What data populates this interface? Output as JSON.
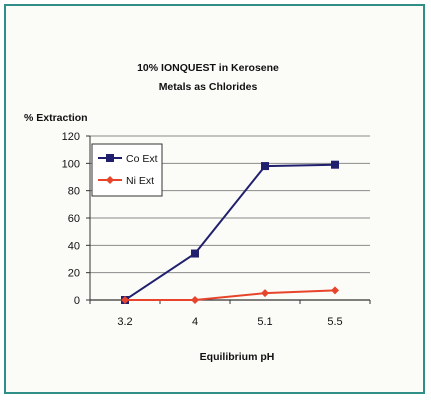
{
  "chart_data": {
    "type": "line",
    "title": "10% IONQUEST in Kerosene",
    "subtitle": "Metals as Chlorides",
    "ylabel": "% Extraction",
    "xlabel": "Equilibrium pH",
    "categories": [
      "3.2",
      "4",
      "5.1",
      "5.5"
    ],
    "ylim": [
      0,
      120
    ],
    "yticks": [
      0,
      20,
      40,
      60,
      80,
      100,
      120
    ],
    "grid": true,
    "legend_position": "top-left",
    "series": [
      {
        "name": "Co Ext",
        "values": [
          0,
          34,
          98,
          99
        ],
        "color": "#1f1f6e",
        "marker": "square"
      },
      {
        "name": "Ni Ext",
        "values": [
          0,
          0,
          5,
          7
        ],
        "color": "#e8442c",
        "marker": "diamond"
      }
    ]
  }
}
